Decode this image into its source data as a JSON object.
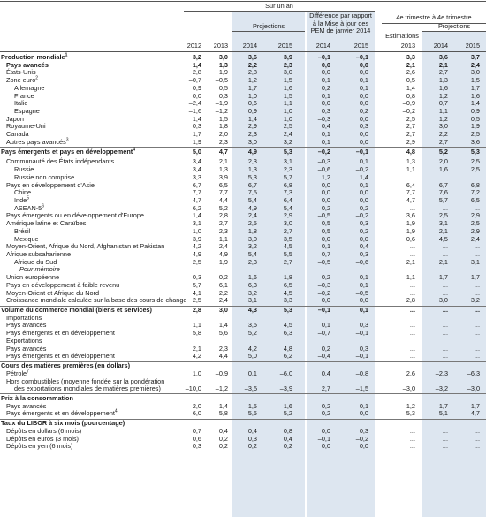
{
  "header": {
    "group_one_year": "Sur un an",
    "projections_label": "Projections",
    "difference_label": [
      "Différence par rapport",
      "à la Mise à jour des",
      "PEM de janvier 2014"
    ],
    "q4_label": "4e trimestre à 4e trimestre",
    "estimations_label": "Estimations",
    "years": [
      "2012",
      "2013",
      "2014",
      "2015",
      "2014",
      "2015",
      "2013",
      "2014",
      "2015"
    ]
  },
  "rows": [
    {
      "label": "Production mondiale",
      "sup": "1",
      "indent": 0,
      "bold": true,
      "values": [
        "3,2",
        "3,0",
        "3,6",
        "3,9",
        "–0,1",
        "–0,1",
        "3,3",
        "3,6",
        "3,7"
      ]
    },
    {
      "label": "Pays avancés",
      "indent": 1,
      "bold": true,
      "values": [
        "1,4",
        "1,3",
        "2,2",
        "2,3",
        "0,0",
        "0,0",
        "2,1",
        "2,1",
        "2,4"
      ]
    },
    {
      "label": "États-Unis",
      "indent": 1,
      "values": [
        "2,8",
        "1,9",
        "2,8",
        "3,0",
        "0,0",
        "0,0",
        "2,6",
        "2,7",
        "3,0"
      ]
    },
    {
      "label": "Zone euro",
      "sup": "2",
      "indent": 1,
      "values": [
        "–0,7",
        "–0,5",
        "1,2",
        "1,5",
        "0,1",
        "0,1",
        "0,5",
        "1,3",
        "1,5"
      ]
    },
    {
      "label": "Allemagne",
      "indent": 2,
      "values": [
        "0,9",
        "0,5",
        "1,7",
        "1,6",
        "0,2",
        "0,1",
        "1,4",
        "1,6",
        "1,7"
      ]
    },
    {
      "label": "France",
      "indent": 2,
      "values": [
        "0,0",
        "0,3",
        "1,0",
        "1,5",
        "0,1",
        "0,0",
        "0,8",
        "1,2",
        "1,6"
      ]
    },
    {
      "label": "Italie",
      "indent": 2,
      "values": [
        "–2,4",
        "–1,9",
        "0,6",
        "1,1",
        "0,0",
        "0,0",
        "–0,9",
        "0,7",
        "1,4"
      ]
    },
    {
      "label": "Espagne",
      "indent": 2,
      "values": [
        "–1,6",
        "–1,2",
        "0,9",
        "1,0",
        "0,3",
        "0,2",
        "–0,2",
        "1,1",
        "0,9"
      ]
    },
    {
      "label": "Japon",
      "indent": 1,
      "values": [
        "1,4",
        "1,5",
        "1,4",
        "1,0",
        "–0,3",
        "0,0",
        "2,5",
        "1,2",
        "0,5"
      ]
    },
    {
      "label": "Royaume-Uni",
      "indent": 1,
      "values": [
        "0,3",
        "1,8",
        "2,9",
        "2,5",
        "0,4",
        "0,3",
        "2,7",
        "3,0",
        "1,9"
      ]
    },
    {
      "label": "Canada",
      "indent": 1,
      "values": [
        "1,7",
        "2,0",
        "2,3",
        "2,4",
        "0,1",
        "0,0",
        "2,7",
        "2,2",
        "2,5"
      ]
    },
    {
      "label": "Autres pays avancés",
      "sup": "3",
      "indent": 1,
      "values": [
        "1,9",
        "2,3",
        "3,0",
        "3,2",
        "0,1",
        "0,0",
        "2,9",
        "2,7",
        "3,6"
      ]
    },
    {
      "sep": true
    },
    {
      "label": "Pays émergents et pays en développement",
      "sup": "4",
      "indent": 0,
      "bold": true,
      "values": [
        "5,0",
        "4,7",
        "4,9",
        "5,3",
        "–0,2",
        "–0,1",
        "4,8",
        "5,2",
        "5,3"
      ]
    },
    {
      "gap": true
    },
    {
      "label": "Communauté des États indépendants",
      "indent": 1,
      "values": [
        "3,4",
        "2,1",
        "2,3",
        "3,1",
        "–0,3",
        "0,1",
        "1,3",
        "2,0",
        "2,5"
      ]
    },
    {
      "label": "Russie",
      "indent": 2,
      "values": [
        "3,4",
        "1,3",
        "1,3",
        "2,3",
        "–0,6",
        "–0,2",
        "1,1",
        "1,6",
        "2,5"
      ]
    },
    {
      "label": "Russie non comprise",
      "indent": 2,
      "values": [
        "3,3",
        "3,9",
        "5,3",
        "5,7",
        "1,2",
        "1,4",
        "...",
        "...",
        "..."
      ]
    },
    {
      "label": "Pays en développement d'Asie",
      "indent": 1,
      "values": [
        "6,7",
        "6,5",
        "6,7",
        "6,8",
        "0,0",
        "0,1",
        "6,4",
        "6,7",
        "6,8"
      ]
    },
    {
      "label": "Chine",
      "indent": 2,
      "values": [
        "7,7",
        "7,7",
        "7,5",
        "7,3",
        "0,0",
        "0,0",
        "7,7",
        "7,6",
        "7,2"
      ]
    },
    {
      "label": "Inde",
      "sup": "5",
      "indent": 2,
      "values": [
        "4,7",
        "4,4",
        "5,4",
        "6,4",
        "0,0",
        "0,0",
        "4,7",
        "5,7",
        "6,5"
      ]
    },
    {
      "label": "ASEAN-5",
      "sup": "6",
      "indent": 2,
      "values": [
        "6,2",
        "5,2",
        "4,9",
        "5,4",
        "–0,2",
        "–0,2",
        "...",
        "...",
        "..."
      ]
    },
    {
      "label": "Pays émergents ou en développement d'Europe",
      "indent": 1,
      "values": [
        "1,4",
        "2,8",
        "2,4",
        "2,9",
        "–0,5",
        "–0,2",
        "3,6",
        "2,5",
        "2,9"
      ]
    },
    {
      "label": "Amérique latine et Caraïbes",
      "indent": 1,
      "values": [
        "3,1",
        "2,7",
        "2,5",
        "3,0",
        "–0,5",
        "–0,3",
        "1,9",
        "3,1",
        "2,5"
      ]
    },
    {
      "label": "Brésil",
      "indent": 2,
      "values": [
        "1,0",
        "2,3",
        "1,8",
        "2,7",
        "–0,5",
        "–0,2",
        "1,9",
        "2,1",
        "2,9"
      ]
    },
    {
      "label": "Mexique",
      "indent": 2,
      "values": [
        "3,9",
        "1,1",
        "3,0",
        "3,5",
        "0,0",
        "0,0",
        "0,6",
        "4,5",
        "2,4"
      ]
    },
    {
      "label": "Moyen-Orient, Afrique du Nord, Afghanistan et Pakistan",
      "indent": 1,
      "values": [
        "4,2",
        "2,4",
        "3,2",
        "4,5",
        "–0,1",
        "–0,4",
        "...",
        "...",
        "..."
      ]
    },
    {
      "label": "Afrique subsaharienne",
      "indent": 1,
      "values": [
        "4,9",
        "4,9",
        "5,4",
        "5,5",
        "–0,7",
        "–0,3",
        "...",
        "...",
        "..."
      ]
    },
    {
      "label": "Afrique du Sud",
      "indent": 2,
      "values": [
        "2,5",
        "1,9",
        "2,3",
        "2,7",
        "–0,5",
        "–0,6",
        "2,1",
        "2,1",
        "3,1"
      ]
    },
    {
      "label": "Pour mémoire",
      "indent": 3,
      "italic": true,
      "values": []
    },
    {
      "label": "Union européenne",
      "indent": 1,
      "values": [
        "–0,3",
        "0,2",
        "1,6",
        "1,8",
        "0,2",
        "0,1",
        "1,1",
        "1,7",
        "1,7"
      ]
    },
    {
      "label": "Pays en développement à faible revenu",
      "indent": 1,
      "values": [
        "5,7",
        "6,1",
        "6,3",
        "6,5",
        "–0,3",
        "0,1",
        "...",
        "...",
        "..."
      ]
    },
    {
      "label": "Moyen-Orient et Afrique du Nord",
      "indent": 1,
      "values": [
        "4,1",
        "2,2",
        "3,2",
        "4,5",
        "–0,2",
        "–0,5",
        "...",
        "...",
        "..."
      ]
    },
    {
      "label": "Croissance mondiale calculée sur la base des cours de change",
      "indent": 1,
      "values": [
        "2,5",
        "2,4",
        "3,1",
        "3,3",
        "0,0",
        "0,0",
        "2,8",
        "3,0",
        "3,2"
      ]
    },
    {
      "sep": true
    },
    {
      "label": "Volume du commerce mondial (biens et services)",
      "indent": 0,
      "bold": true,
      "values": [
        "2,8",
        "3,0",
        "4,3",
        "5,3",
        "–0,1",
        "0,1",
        "...",
        "...",
        "..."
      ]
    },
    {
      "label": "Importations",
      "indent": 1,
      "values": []
    },
    {
      "label": "Pays avancés",
      "indent": 1,
      "values": [
        "1,1",
        "1,4",
        "3,5",
        "4,5",
        "0,1",
        "0,3",
        "...",
        "...",
        "..."
      ]
    },
    {
      "label": "Pays émergents et en développement",
      "indent": 1,
      "values": [
        "5,8",
        "5,6",
        "5,2",
        "6,3",
        "–0,7",
        "–0,1",
        "...",
        "...",
        "..."
      ]
    },
    {
      "label": "Exportations",
      "indent": 1,
      "values": []
    },
    {
      "label": "Pays avancés",
      "indent": 1,
      "values": [
        "2,1",
        "2,3",
        "4,2",
        "4,8",
        "0,2",
        "0,3",
        "...",
        "...",
        "..."
      ]
    },
    {
      "label": "Pays émergents et en développement",
      "indent": 1,
      "values": [
        "4,2",
        "4,4",
        "5,0",
        "6,2",
        "–0,4",
        "–0,1",
        "...",
        "...",
        "..."
      ]
    },
    {
      "sep": true
    },
    {
      "label": "Cours des matières premières (en dollars)",
      "indent": 0,
      "bold": true,
      "values": []
    },
    {
      "label": "Pétrole",
      "sup": "7",
      "indent": 1,
      "values": [
        "1,0",
        "–0,9",
        "0,1",
        "–6,0",
        "0,4",
        "–0,8",
        "2,6",
        "–2,3",
        "–6,3"
      ]
    },
    {
      "label": "Hors combustibles (moyenne fondée sur la pondération",
      "indent": 1,
      "values": []
    },
    {
      "label": "des exportations mondiales de matières premières)",
      "indent": 2,
      "values": [
        "–10,0",
        "–1,2",
        "–3,5",
        "–3,9",
        "2,7",
        "–1,5",
        "–3,0",
        "–3,2",
        "–3,0"
      ]
    },
    {
      "sep": true
    },
    {
      "label": "Prix à la consommation",
      "indent": 0,
      "bold": true,
      "values": []
    },
    {
      "label": "Pays avancés",
      "indent": 1,
      "values": [
        "2,0",
        "1,4",
        "1,5",
        "1,6",
        "–0,2",
        "–0,1",
        "1,2",
        "1,7",
        "1,7"
      ]
    },
    {
      "label": "Pays émergents et en développement",
      "sup": "4",
      "indent": 1,
      "values": [
        "6,0",
        "5,8",
        "5,5",
        "5,2",
        "–0,2",
        "0,0",
        "5,3",
        "5,1",
        "4,7"
      ]
    },
    {
      "sep": true
    },
    {
      "label": "Taux du LIBOR à six mois (pourcentage)",
      "indent": 0,
      "bold": true,
      "values": []
    },
    {
      "label": "Dépôts en dollars (6 mois)",
      "indent": 1,
      "values": [
        "0,7",
        "0,4",
        "0,4",
        "0,8",
        "0,0",
        "0,3",
        "...",
        "...",
        "..."
      ]
    },
    {
      "label": "Dépôts en euros (3 mois)",
      "indent": 1,
      "values": [
        "0,6",
        "0,2",
        "0,3",
        "0,4",
        "–0,1",
        "–0,2",
        "...",
        "...",
        "..."
      ]
    },
    {
      "label": "Dépôts en yen (6 mois)",
      "indent": 1,
      "values": [
        "0,3",
        "0,2",
        "0,2",
        "0,2",
        "0,0",
        "0,0",
        "...",
        "...",
        "..."
      ]
    }
  ]
}
